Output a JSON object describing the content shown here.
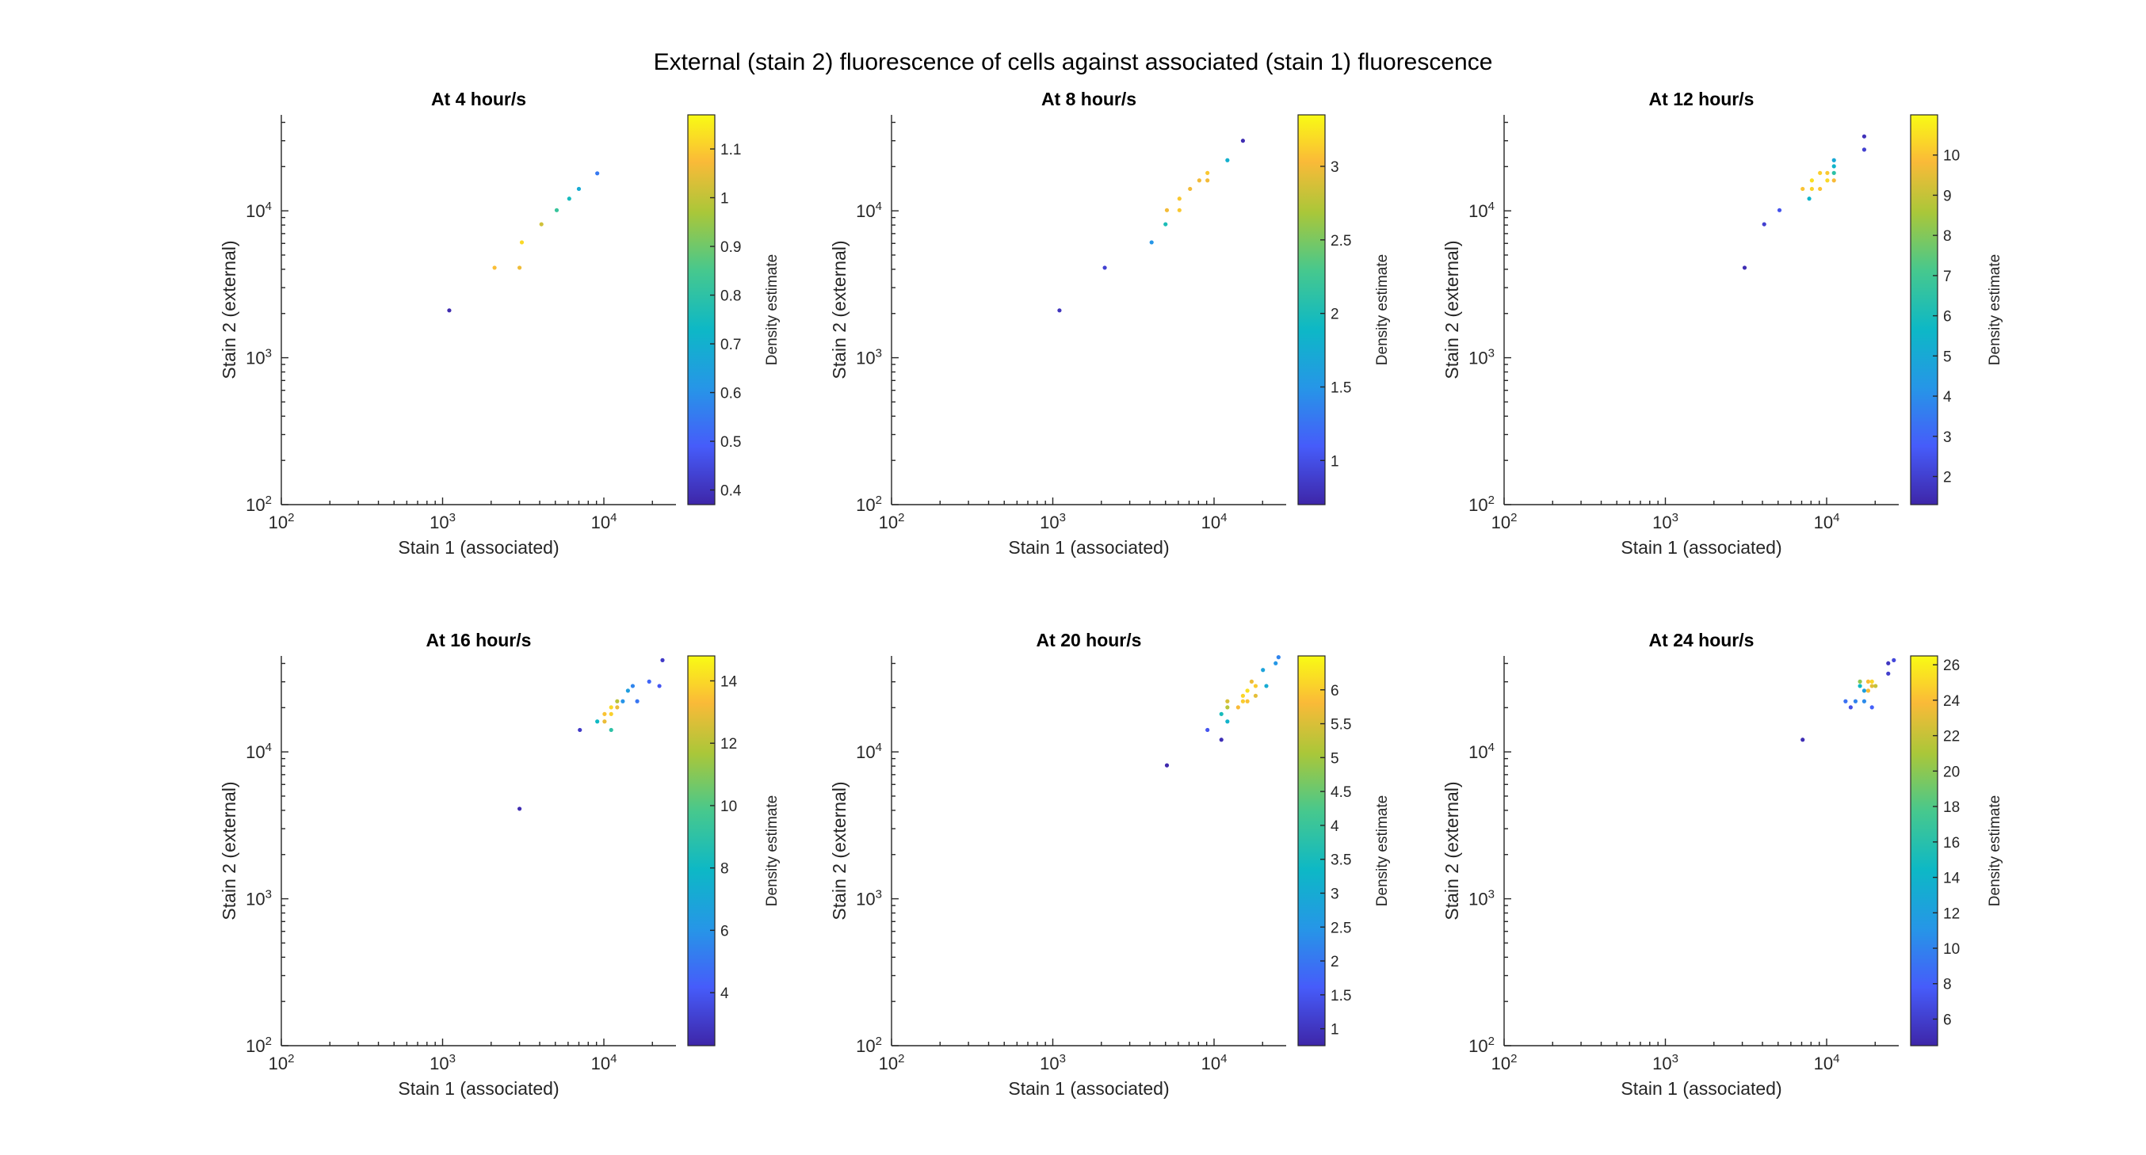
{
  "figure_title": "External (stain 2) fluorescence of cells against associated (stain 1) fluorescence",
  "chart_data": [
    {
      "type": "scatter",
      "title": "At 4 hour/s",
      "xlabel": "Stain 1 (associated)",
      "ylabel": "Stain 2 (external)",
      "xscale": "log",
      "yscale": "log",
      "xlim": [
        100,
        28000
      ],
      "ylim": [
        100,
        45000
      ],
      "xticks": [
        "10^2",
        "10^3",
        "10^4"
      ],
      "yticks": [
        "10^2",
        "10^3",
        "10^4"
      ],
      "colorbar": {
        "label": "Density estimate",
        "lim": [
          0.37,
          1.17
        ],
        "ticks": [
          "0.4",
          "0.5",
          "0.6",
          "0.7",
          "0.8",
          "0.9",
          "1",
          "1.1"
        ]
      },
      "points": [
        {
          "x": 1100,
          "y": 2100,
          "d": 0.38
        },
        {
          "x": 2100,
          "y": 4100,
          "d": 1.08
        },
        {
          "x": 3000,
          "y": 4100,
          "d": 1.06
        },
        {
          "x": 3100,
          "y": 6100,
          "d": 1.12
        },
        {
          "x": 4100,
          "y": 8100,
          "d": 1.02
        },
        {
          "x": 5100,
          "y": 10100,
          "d": 0.82
        },
        {
          "x": 6100,
          "y": 12100,
          "d": 0.75
        },
        {
          "x": 7000,
          "y": 14100,
          "d": 0.68
        },
        {
          "x": 9100,
          "y": 18000,
          "d": 0.55
        }
      ]
    },
    {
      "type": "scatter",
      "title": "At 8 hour/s",
      "xlabel": "Stain 1 (associated)",
      "ylabel": "Stain 2 (external)",
      "xscale": "log",
      "yscale": "log",
      "xlim": [
        100,
        28000
      ],
      "ylim": [
        100,
        45000
      ],
      "xticks": [
        "10^2",
        "10^3",
        "10^4"
      ],
      "yticks": [
        "10^2",
        "10^3",
        "10^4"
      ],
      "colorbar": {
        "label": "Density estimate",
        "lim": [
          0.7,
          3.35
        ],
        "ticks": [
          "1",
          "1.5",
          "2",
          "2.5",
          "3"
        ]
      },
      "points": [
        {
          "x": 1100,
          "y": 2100,
          "d": 0.8
        },
        {
          "x": 2100,
          "y": 4100,
          "d": 0.9
        },
        {
          "x": 4100,
          "y": 6100,
          "d": 1.5
        },
        {
          "x": 5000,
          "y": 8100,
          "d": 2.0
        },
        {
          "x": 5100,
          "y": 10100,
          "d": 3.0
        },
        {
          "x": 6100,
          "y": 12100,
          "d": 3.1
        },
        {
          "x": 6100,
          "y": 10100,
          "d": 3.1
        },
        {
          "x": 7100,
          "y": 14100,
          "d": 3.0
        },
        {
          "x": 8100,
          "y": 16100,
          "d": 3.0
        },
        {
          "x": 9100,
          "y": 18100,
          "d": 3.1
        },
        {
          "x": 9100,
          "y": 16100,
          "d": 3.0
        },
        {
          "x": 12100,
          "y": 22100,
          "d": 1.8
        },
        {
          "x": 15100,
          "y": 30000,
          "d": 0.75
        }
      ]
    },
    {
      "type": "scatter",
      "title": "At 12 hour/s",
      "xlabel": "Stain 1 (associated)",
      "ylabel": "Stain 2 (external)",
      "xscale": "log",
      "yscale": "log",
      "xlim": [
        100,
        28000
      ],
      "ylim": [
        100,
        45000
      ],
      "xticks": [
        "10^2",
        "10^3",
        "10^4"
      ],
      "yticks": [
        "10^2",
        "10^3",
        "10^4"
      ],
      "colorbar": {
        "label": "Density estimate",
        "lim": [
          1.3,
          11.0
        ],
        "ticks": [
          "2",
          "3",
          "4",
          "5",
          "6",
          "7",
          "8",
          "9",
          "10"
        ]
      },
      "points": [
        {
          "x": 3100,
          "y": 4100,
          "d": 1.5
        },
        {
          "x": 4100,
          "y": 8100,
          "d": 2.0
        },
        {
          "x": 5100,
          "y": 10100,
          "d": 2.5
        },
        {
          "x": 7100,
          "y": 14100,
          "d": 10.0
        },
        {
          "x": 7800,
          "y": 12100,
          "d": 5.5
        },
        {
          "x": 8100,
          "y": 14100,
          "d": 10.3
        },
        {
          "x": 8100,
          "y": 16100,
          "d": 10.5
        },
        {
          "x": 9100,
          "y": 18100,
          "d": 10.2
        },
        {
          "x": 9100,
          "y": 14100,
          "d": 10.0
        },
        {
          "x": 10100,
          "y": 16100,
          "d": 10.4
        },
        {
          "x": 10100,
          "y": 18100,
          "d": 10.1
        },
        {
          "x": 11100,
          "y": 16100,
          "d": 9.8
        },
        {
          "x": 11100,
          "y": 18100,
          "d": 6.5
        },
        {
          "x": 11100,
          "y": 20100,
          "d": 5.5
        },
        {
          "x": 11100,
          "y": 22100,
          "d": 5.0
        },
        {
          "x": 17100,
          "y": 26100,
          "d": 2.0
        },
        {
          "x": 17100,
          "y": 32100,
          "d": 1.6
        }
      ]
    },
    {
      "type": "scatter",
      "title": "At 16 hour/s",
      "xlabel": "Stain 1 (associated)",
      "ylabel": "Stain 2 (external)",
      "xscale": "log",
      "yscale": "log",
      "xlim": [
        100,
        28000
      ],
      "ylim": [
        100,
        45000
      ],
      "xticks": [
        "10^2",
        "10^3",
        "10^4"
      ],
      "yticks": [
        "10^2",
        "10^3",
        "10^4"
      ],
      "colorbar": {
        "label": "Density estimate",
        "lim": [
          2.3,
          14.8
        ],
        "ticks": [
          "4",
          "6",
          "8",
          "10",
          "12",
          "14"
        ]
      },
      "points": [
        {
          "x": 3000,
          "y": 4100,
          "d": 2.5
        },
        {
          "x": 7100,
          "y": 14100,
          "d": 3.0
        },
        {
          "x": 9100,
          "y": 16100,
          "d": 8.0
        },
        {
          "x": 10100,
          "y": 16100,
          "d": 13.0
        },
        {
          "x": 10100,
          "y": 18100,
          "d": 13.5
        },
        {
          "x": 11100,
          "y": 14100,
          "d": 9.0
        },
        {
          "x": 11100,
          "y": 20100,
          "d": 14.0
        },
        {
          "x": 11100,
          "y": 18100,
          "d": 13.8
        },
        {
          "x": 12100,
          "y": 20100,
          "d": 13.0
        },
        {
          "x": 12100,
          "y": 22100,
          "d": 12.0
        },
        {
          "x": 13100,
          "y": 22100,
          "d": 6.0
        },
        {
          "x": 14100,
          "y": 26100,
          "d": 6.5
        },
        {
          "x": 15100,
          "y": 28100,
          "d": 5.5
        },
        {
          "x": 16100,
          "y": 22100,
          "d": 5.0
        },
        {
          "x": 19100,
          "y": 30100,
          "d": 4.5
        },
        {
          "x": 22100,
          "y": 28100,
          "d": 4.0
        },
        {
          "x": 23100,
          "y": 42100,
          "d": 3.0
        }
      ]
    },
    {
      "type": "scatter",
      "title": "At 20 hour/s",
      "xlabel": "Stain 1 (associated)",
      "ylabel": "Stain 2 (external)",
      "xscale": "log",
      "yscale": "log",
      "xlim": [
        100,
        28000
      ],
      "ylim": [
        100,
        45000
      ],
      "xticks": [
        "10^2",
        "10^3",
        "10^4"
      ],
      "yticks": [
        "10^2",
        "10^3",
        "10^4"
      ],
      "colorbar": {
        "label": "Density estimate",
        "lim": [
          0.75,
          6.5
        ],
        "ticks": [
          "1",
          "1.5",
          "2",
          "2.5",
          "3",
          "3.5",
          "4",
          "4.5",
          "5",
          "5.5",
          "6"
        ]
      },
      "points": [
        {
          "x": 5100,
          "y": 8100,
          "d": 0.8
        },
        {
          "x": 9100,
          "y": 14100,
          "d": 1.5
        },
        {
          "x": 11100,
          "y": 12100,
          "d": 0.9
        },
        {
          "x": 11100,
          "y": 18100,
          "d": 3.5
        },
        {
          "x": 12100,
          "y": 16100,
          "d": 3.2
        },
        {
          "x": 12100,
          "y": 20100,
          "d": 5.2
        },
        {
          "x": 12100,
          "y": 22100,
          "d": 5.5
        },
        {
          "x": 14100,
          "y": 20100,
          "d": 5.8
        },
        {
          "x": 15100,
          "y": 22100,
          "d": 6.0
        },
        {
          "x": 15100,
          "y": 24100,
          "d": 6.1
        },
        {
          "x": 16100,
          "y": 26100,
          "d": 6.2
        },
        {
          "x": 16100,
          "y": 22100,
          "d": 5.9
        },
        {
          "x": 17100,
          "y": 30100,
          "d": 5.7
        },
        {
          "x": 18100,
          "y": 28100,
          "d": 6.0
        },
        {
          "x": 18100,
          "y": 24100,
          "d": 5.6
        },
        {
          "x": 20100,
          "y": 36100,
          "d": 2.8
        },
        {
          "x": 21100,
          "y": 28100,
          "d": 3.0
        },
        {
          "x": 24100,
          "y": 40100,
          "d": 2.5
        },
        {
          "x": 25100,
          "y": 44100,
          "d": 2.2
        }
      ]
    },
    {
      "type": "scatter",
      "title": "At 24 hour/s",
      "xlabel": "Stain 1 (associated)",
      "ylabel": "Stain 2 (external)",
      "xscale": "log",
      "yscale": "log",
      "xlim": [
        100,
        28000
      ],
      "ylim": [
        100,
        45000
      ],
      "xticks": [
        "10^2",
        "10^3",
        "10^4"
      ],
      "yticks": [
        "10^2",
        "10^3",
        "10^4"
      ],
      "colorbar": {
        "label": "Density estimate",
        "lim": [
          4.5,
          26.5
        ],
        "ticks": [
          "6",
          "8",
          "10",
          "12",
          "14",
          "16",
          "18",
          "20",
          "22",
          "24",
          "26"
        ]
      },
      "points": [
        {
          "x": 7100,
          "y": 12100,
          "d": 5.0
        },
        {
          "x": 13100,
          "y": 22100,
          "d": 9.0
        },
        {
          "x": 14100,
          "y": 20100,
          "d": 7.0
        },
        {
          "x": 15100,
          "y": 22100,
          "d": 10.0
        },
        {
          "x": 16100,
          "y": 28100,
          "d": 14.5
        },
        {
          "x": 16100,
          "y": 30100,
          "d": 20.0
        },
        {
          "x": 17100,
          "y": 26100,
          "d": 12.0
        },
        {
          "x": 17100,
          "y": 22100,
          "d": 10.5
        },
        {
          "x": 18100,
          "y": 30100,
          "d": 24.0
        },
        {
          "x": 18100,
          "y": 26100,
          "d": 24.0
        },
        {
          "x": 19100,
          "y": 30100,
          "d": 25.0
        },
        {
          "x": 19100,
          "y": 28100,
          "d": 23.0
        },
        {
          "x": 19100,
          "y": 20100,
          "d": 8.0
        },
        {
          "x": 20100,
          "y": 28100,
          "d": 22.0
        },
        {
          "x": 24100,
          "y": 34100,
          "d": 6.0
        },
        {
          "x": 24100,
          "y": 40100,
          "d": 5.5
        },
        {
          "x": 26100,
          "y": 42100,
          "d": 6.5
        }
      ]
    }
  ]
}
